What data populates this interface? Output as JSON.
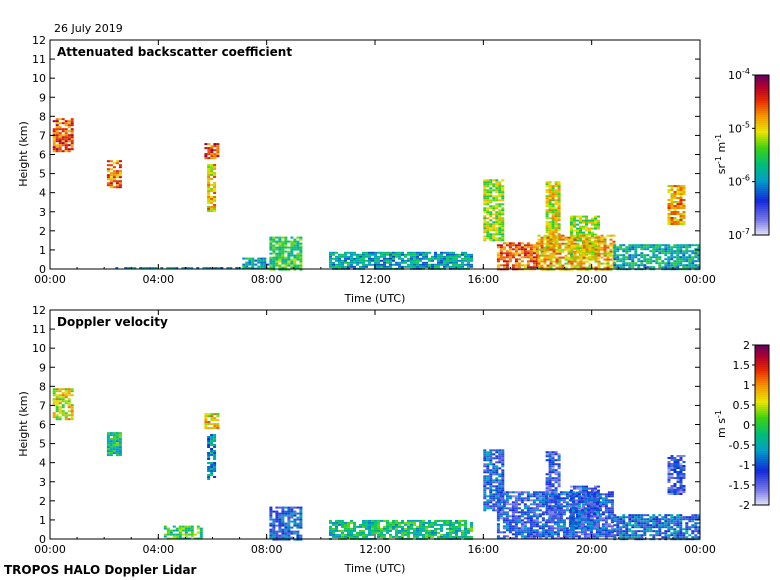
{
  "date_label": "26 July 2019",
  "footer": "TROPOS HALO Doppler Lidar",
  "chart_data": [
    {
      "type": "heatmap",
      "title": "Attenuated backscatter coefficient",
      "xlabel": "Time (UTC)",
      "ylabel": "Height (km)",
      "xlim": [
        0,
        24
      ],
      "ylim": [
        0,
        12
      ],
      "xticks": [
        "00:00",
        "04:00",
        "08:00",
        "12:00",
        "16:00",
        "20:00",
        "00:00"
      ],
      "yticks": [
        "0",
        "1",
        "2",
        "3",
        "4",
        "5",
        "6",
        "7",
        "8",
        "9",
        "10",
        "11",
        "12"
      ],
      "colorbar": {
        "scale": "log",
        "unit_base": "sr",
        "unit_exp": "-1",
        "unit_base2": "m",
        "unit_exp2": "-1",
        "ticks": [
          {
            "base": "10",
            "exp": "-4"
          },
          {
            "base": "10",
            "exp": "-5"
          },
          {
            "base": "10",
            "exp": "-6"
          },
          {
            "base": "10",
            "exp": "-7"
          }
        ],
        "range": [
          "1e-7",
          "1e-4"
        ]
      },
      "regions": [
        {
          "t0": 0.1,
          "t1": 0.8,
          "h0": 6.2,
          "h1": 7.9,
          "level": 0.82
        },
        {
          "t0": 2.1,
          "t1": 2.6,
          "h0": 4.3,
          "h1": 5.7,
          "level": 0.78
        },
        {
          "t0": 5.7,
          "t1": 6.2,
          "h0": 5.8,
          "h1": 6.6,
          "level": 0.85
        },
        {
          "t0": 5.8,
          "t1": 6.1,
          "h0": 3.0,
          "h1": 5.5,
          "level": 0.7
        },
        {
          "t0": 16.0,
          "t1": 16.7,
          "h0": 1.5,
          "h1": 4.7,
          "level": 0.6
        },
        {
          "t0": 18.3,
          "t1": 18.8,
          "h0": 1.0,
          "h1": 4.6,
          "level": 0.65
        },
        {
          "t0": 19.2,
          "t1": 20.2,
          "h0": 0.5,
          "h1": 2.8,
          "level": 0.6
        },
        {
          "t0": 22.8,
          "t1": 23.4,
          "h0": 2.4,
          "h1": 4.4,
          "level": 0.72
        },
        {
          "t0": 2.3,
          "t1": 7.5,
          "h0": 0.0,
          "h1": 0.1,
          "level": 0.35
        },
        {
          "t0": 7.1,
          "t1": 8.0,
          "h0": 0.0,
          "h1": 0.6,
          "level": 0.4
        },
        {
          "t0": 8.1,
          "t1": 9.3,
          "h0": 0.0,
          "h1": 1.7,
          "level": 0.5
        },
        {
          "t0": 10.3,
          "t1": 15.6,
          "h0": 0.0,
          "h1": 0.9,
          "level": 0.38
        },
        {
          "t0": 16.5,
          "t1": 18.0,
          "h0": 0.0,
          "h1": 1.4,
          "level": 0.8
        },
        {
          "t0": 18.0,
          "t1": 20.8,
          "h0": 0.0,
          "h1": 1.8,
          "level": 0.7
        },
        {
          "t0": 20.8,
          "t1": 24.0,
          "h0": 0.0,
          "h1": 1.3,
          "level": 0.4
        }
      ]
    },
    {
      "type": "heatmap",
      "title": "Doppler velocity",
      "xlabel": "Time (UTC)",
      "ylabel": "Height (km)",
      "xlim": [
        0,
        24
      ],
      "ylim": [
        0,
        12
      ],
      "xticks": [
        "00:00",
        "04:00",
        "08:00",
        "12:00",
        "16:00",
        "20:00",
        "00:00"
      ],
      "yticks": [
        "0",
        "1",
        "2",
        "3",
        "4",
        "5",
        "6",
        "7",
        "8",
        "9",
        "10",
        "11",
        "12"
      ],
      "colorbar": {
        "scale": "linear",
        "unit": "m s",
        "unit_exp": "-1",
        "ticks": [
          "2",
          "1.5",
          "1",
          "0.5",
          "0",
          "-0.5",
          "-1",
          "-1.5",
          "-2"
        ],
        "range": [
          -2,
          2
        ]
      },
      "regions": [
        {
          "t0": 0.1,
          "t1": 0.8,
          "h0": 6.3,
          "h1": 7.9,
          "level": 0.65
        },
        {
          "t0": 2.1,
          "t1": 2.6,
          "h0": 4.4,
          "h1": 5.6,
          "level": 0.45
        },
        {
          "t0": 5.7,
          "t1": 6.2,
          "h0": 5.8,
          "h1": 6.6,
          "level": 0.68
        },
        {
          "t0": 5.8,
          "t1": 6.1,
          "h0": 3.0,
          "h1": 5.5,
          "level": 0.35
        },
        {
          "t0": 16.0,
          "t1": 16.7,
          "h0": 1.5,
          "h1": 4.7,
          "level": 0.25
        },
        {
          "t0": 18.3,
          "t1": 18.8,
          "h0": 1.0,
          "h1": 4.6,
          "level": 0.2
        },
        {
          "t0": 19.2,
          "t1": 20.2,
          "h0": 0.5,
          "h1": 2.8,
          "level": 0.2
        },
        {
          "t0": 22.8,
          "t1": 23.4,
          "h0": 2.4,
          "h1": 4.4,
          "level": 0.18
        },
        {
          "t0": 4.2,
          "t1": 5.6,
          "h0": 0.0,
          "h1": 0.7,
          "level": 0.5
        },
        {
          "t0": 8.1,
          "t1": 9.3,
          "h0": 0.0,
          "h1": 1.7,
          "level": 0.25
        },
        {
          "t0": 10.3,
          "t1": 15.6,
          "h0": 0.0,
          "h1": 1.0,
          "level": 0.45
        },
        {
          "t0": 16.5,
          "t1": 20.8,
          "h0": 0.0,
          "h1": 2.5,
          "level": 0.22
        },
        {
          "t0": 20.8,
          "t1": 24.0,
          "h0": 0.0,
          "h1": 1.3,
          "level": 0.28
        }
      ]
    }
  ]
}
